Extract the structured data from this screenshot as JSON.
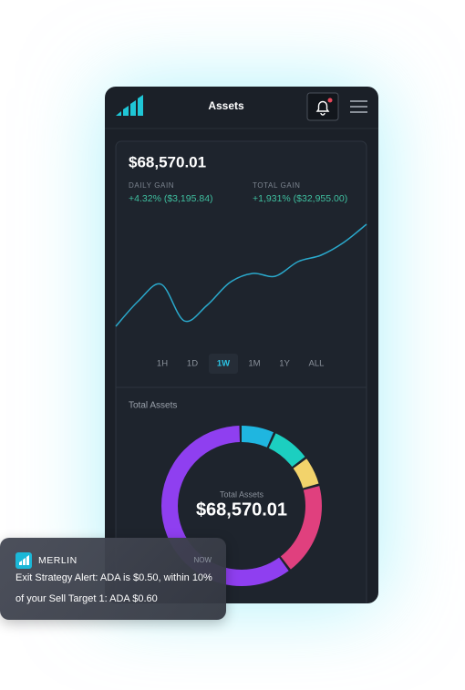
{
  "header": {
    "title": "Assets"
  },
  "portfolio": {
    "balance": "$68,570.01",
    "daily_gain": {
      "label": "DAILY GAIN",
      "value": "+4.32% ($3,195.84)"
    },
    "total_gain": {
      "label": "TOTAL GAIN",
      "value": "+1,931% ($32,955.00)"
    }
  },
  "price_chart": {
    "type": "line",
    "color": "#2aa9cc",
    "values": [
      2,
      30,
      48,
      8,
      25,
      50,
      60,
      57,
      73,
      80,
      94,
      114
    ]
  },
  "ranges": {
    "options": [
      "1H",
      "1D",
      "1W",
      "1M",
      "1Y",
      "ALL"
    ],
    "selected": 2
  },
  "allocation": {
    "type": "pie",
    "title": "Total Assets",
    "center_label": "Total Assets",
    "center_value": "$68,570.01",
    "values": [
      7,
      8,
      6,
      19,
      60
    ],
    "colors": [
      "#1fb6e0",
      "#1ccfc0",
      "#f2d36b",
      "#e0407e",
      "#8f3ff0"
    ]
  },
  "notification": {
    "app": "MERLIN",
    "time": "NOW",
    "message": [
      "Exit Strategy Alert: ADA is $0.50, within 10%",
      "of your Sell Target 1: ADA $0.60"
    ]
  }
}
